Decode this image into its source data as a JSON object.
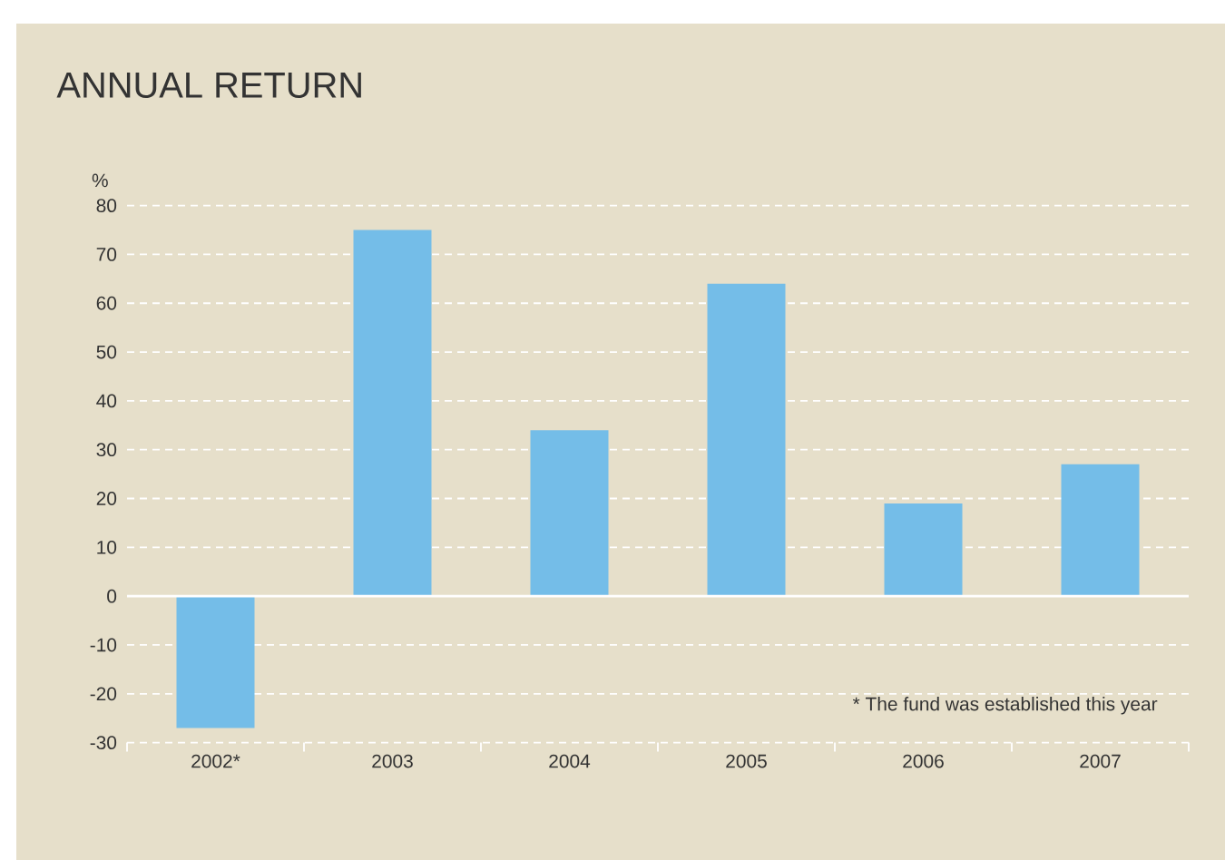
{
  "chart_data": {
    "type": "bar",
    "title": "ANNUAL RETURN",
    "ylabel": "%",
    "categories": [
      "2002*",
      "2003",
      "2004",
      "2005",
      "2006",
      "2007"
    ],
    "values": [
      -27,
      75,
      34,
      64,
      19,
      27
    ],
    "color": "#74bde8",
    "ylim": [
      -30,
      80
    ],
    "yticks": [
      -30,
      -20,
      -10,
      0,
      10,
      20,
      30,
      40,
      50,
      60,
      70,
      80
    ],
    "grid": "y",
    "annotations": [
      "* The fund was established this year"
    ]
  }
}
